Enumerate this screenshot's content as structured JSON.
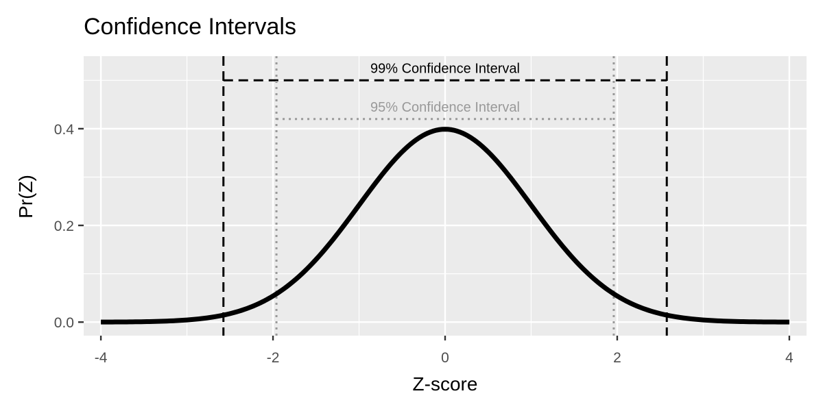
{
  "chart_data": {
    "type": "line",
    "title": "Confidence Intervals",
    "xlabel": "Z-score",
    "ylabel": "Pr(Z)",
    "xlim": [
      -4.2,
      4.2
    ],
    "ylim": [
      -0.028,
      0.55
    ],
    "x_ticks": [
      -4,
      -2,
      0,
      2,
      4
    ],
    "x_tick_labels": [
      "-4",
      "-2",
      "0",
      "2",
      "4"
    ],
    "y_ticks": [
      0.0,
      0.2,
      0.4
    ],
    "y_tick_labels": [
      "0.0",
      "0.2",
      "0.4"
    ],
    "grid": true,
    "series": [
      {
        "x": [
          -4.0,
          -3.5,
          -3.0,
          -2.5,
          -2.0,
          -1.5,
          -1.0,
          -0.5,
          0.0,
          0.5,
          1.0,
          1.5,
          2.0,
          2.5,
          3.0,
          3.5,
          4.0
        ],
        "values": [
          0.0001,
          0.0009,
          0.0044,
          0.0175,
          0.054,
          0.1295,
          0.242,
          0.3521,
          0.3989,
          0.3521,
          0.242,
          0.1295,
          0.054,
          0.0175,
          0.0044,
          0.0009,
          0.0001
        ],
        "color": "#000000"
      }
    ],
    "intervals": [
      {
        "label": "99% Confidence Interval",
        "lower": -2.576,
        "upper": 2.576,
        "y": 0.5,
        "line_style": "dashed",
        "color": "#000000"
      },
      {
        "label": "95% Confidence Interval",
        "lower": -1.96,
        "upper": 1.96,
        "y": 0.42,
        "line_style": "dotted",
        "color": "#999999"
      }
    ]
  }
}
